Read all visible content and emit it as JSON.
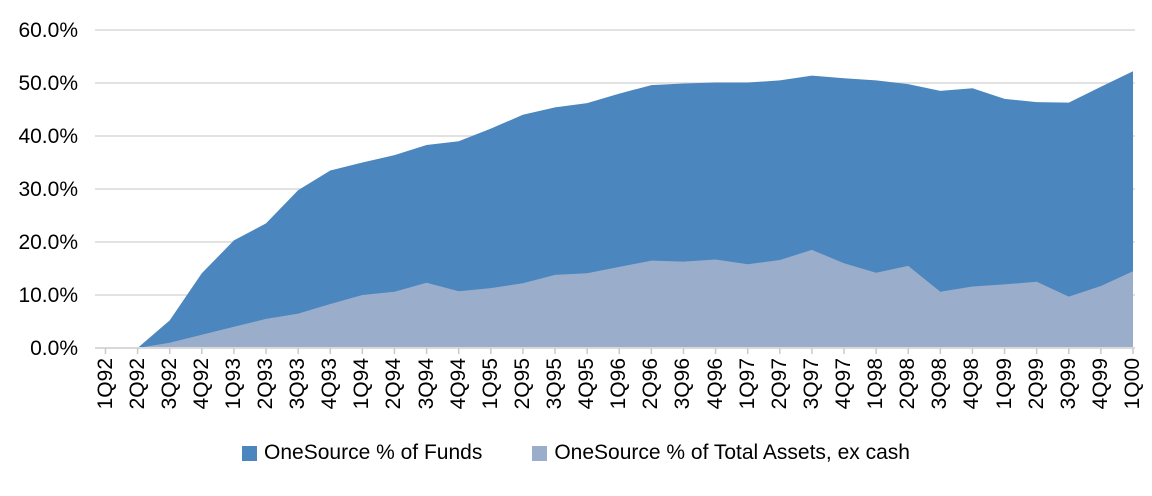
{
  "chart_data": {
    "type": "area",
    "categories": [
      "1Q92",
      "2Q92",
      "3Q92",
      "4Q92",
      "1Q93",
      "2Q93",
      "3Q93",
      "4Q93",
      "1Q94",
      "2Q94",
      "3Q94",
      "4Q94",
      "1Q95",
      "2Q95",
      "3Q95",
      "4Q95",
      "1Q96",
      "2Q96",
      "3Q96",
      "4Q96",
      "1Q97",
      "2Q97",
      "3Q97",
      "4Q97",
      "1Q98",
      "2Q98",
      "3Q98",
      "4Q98",
      "1Q99",
      "2Q99",
      "3Q99",
      "4Q99",
      "1Q00"
    ],
    "series": [
      {
        "name": "OneSource % of Funds",
        "color": "#4C86BE",
        "values": [
          0,
          0,
          5.2,
          14.1,
          20.3,
          23.5,
          29.8,
          33.5,
          35.0,
          36.4,
          38.3,
          39.0,
          41.4,
          44.0,
          45.4,
          46.2,
          48.0,
          49.6,
          49.9,
          50.1,
          50.1,
          50.5,
          51.4,
          50.9,
          50.5,
          49.8,
          48.5,
          49.0,
          47.0,
          46.4,
          46.3,
          49.3,
          52.2
        ]
      },
      {
        "name": "OneSource % of Total Assets, ex cash",
        "color": "#9AAECB",
        "values": [
          0,
          0,
          1.0,
          2.5,
          4.0,
          5.5,
          6.5,
          8.3,
          10.0,
          10.6,
          12.3,
          10.7,
          11.3,
          12.2,
          13.8,
          14.1,
          15.3,
          16.5,
          16.3,
          16.7,
          15.8,
          16.6,
          18.5,
          16.0,
          14.2,
          15.5,
          10.6,
          11.6,
          12.0,
          12.5,
          9.7,
          11.7,
          14.5
        ]
      }
    ],
    "xlabel": "",
    "ylabel": "",
    "ylim": [
      0,
      60
    ],
    "ytick_step": 10,
    "ytick_labels": [
      "0.0%",
      "10.0%",
      "20.0%",
      "30.0%",
      "40.0%",
      "50.0%",
      "60.0%"
    ],
    "grid": true,
    "gridline_color": "#D9D9D9",
    "tick_color": "#C9C9C9",
    "legend_position": "bottom"
  }
}
